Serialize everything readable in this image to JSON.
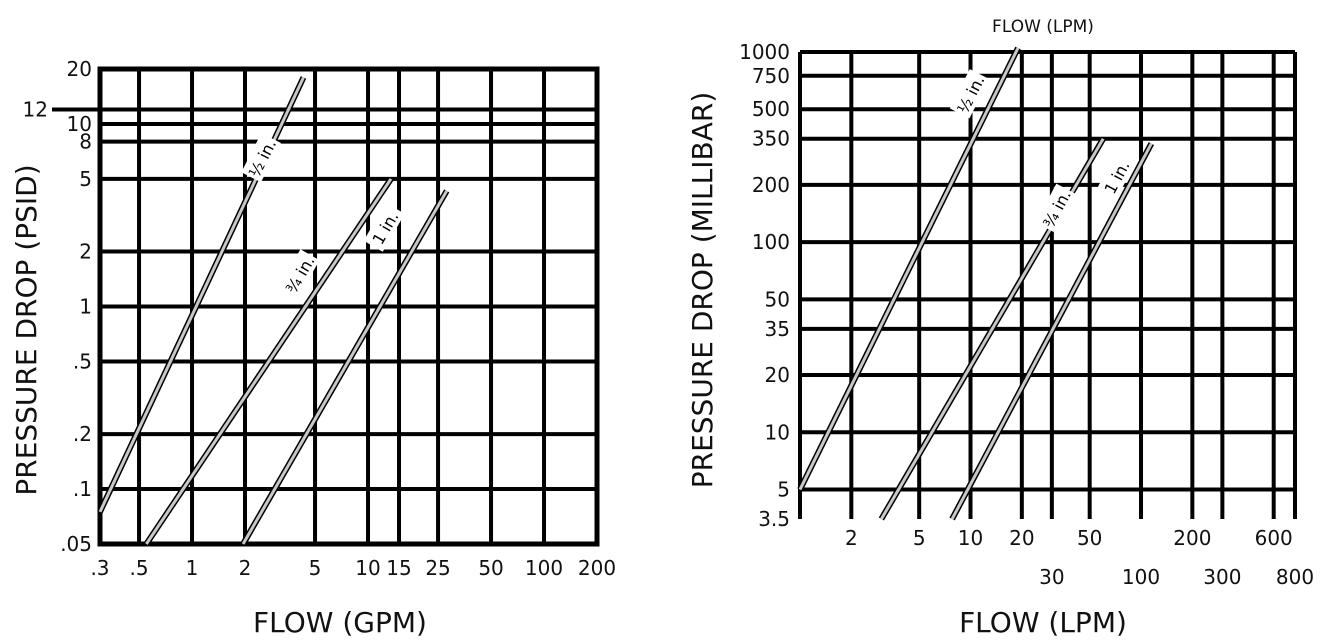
{
  "chart_data": [
    {
      "type": "line",
      "xlabel": "FLOW (GPM)",
      "ylabel": "PRESSURE DROP (PSID)",
      "x_scale": "log",
      "y_scale": "log",
      "xlim": [
        0.3,
        200
      ],
      "ylim": [
        0.05,
        20
      ],
      "x_ticks": [
        {
          "v": 0.3,
          "label": ".3"
        },
        {
          "v": 0.5,
          "label": ".5"
        },
        {
          "v": 1,
          "label": "1"
        },
        {
          "v": 2,
          "label": "2"
        },
        {
          "v": 5,
          "label": "5"
        },
        {
          "v": 10,
          "label": "10"
        },
        {
          "v": 15,
          "label": "15"
        },
        {
          "v": 25,
          "label": "25"
        },
        {
          "v": 50,
          "label": "50"
        },
        {
          "v": 100,
          "label": "100"
        },
        {
          "v": 200,
          "label": "200"
        }
      ],
      "y_ticks": [
        {
          "v": 0.05,
          "label": ".05"
        },
        {
          "v": 0.1,
          "label": ".1"
        },
        {
          "v": 0.2,
          "label": ".2"
        },
        {
          "v": 0.5,
          "label": ".5"
        },
        {
          "v": 1,
          "label": "1"
        },
        {
          "v": 2,
          "label": "2"
        },
        {
          "v": 5,
          "label": "5"
        },
        {
          "v": 8,
          "label": "8"
        },
        {
          "v": 10,
          "label": "10"
        },
        {
          "v": 20,
          "label": "20"
        }
      ],
      "extra_ticks": [
        {
          "v": 12,
          "label": "12"
        }
      ],
      "series": [
        {
          "name": "½ in.",
          "points": [
            [
              0.3,
              0.075
            ],
            [
              4.3,
              18
            ]
          ]
        },
        {
          "name": "¾ in.",
          "points": [
            [
              0.55,
              0.05
            ],
            [
              13.5,
              5
            ]
          ]
        },
        {
          "name": "1 in.",
          "points": [
            [
              1.95,
              0.05
            ],
            [
              28,
              4.3
            ]
          ]
        }
      ]
    },
    {
      "type": "line",
      "title": "FLOW (LPM)",
      "xlabel": "FLOW (LPM)",
      "ylabel": "PRESSURE DROP (MILLIBAR)",
      "x_scale": "log",
      "y_scale": "log",
      "xlim": [
        1,
        800
      ],
      "ylim": [
        3.5,
        1000
      ],
      "x_ticks_top_row": [
        {
          "v": 2,
          "label": "2"
        },
        {
          "v": 5,
          "label": "5"
        },
        {
          "v": 10,
          "label": "10"
        },
        {
          "v": 20,
          "label": "20"
        },
        {
          "v": 50,
          "label": "50"
        },
        {
          "v": 200,
          "label": "200"
        },
        {
          "v": 600,
          "label": "600"
        }
      ],
      "x_ticks_bottom_row": [
        {
          "v": 30,
          "label": "30"
        },
        {
          "v": 100,
          "label": "100"
        },
        {
          "v": 300,
          "label": "300"
        },
        {
          "v": 800,
          "label": "800"
        }
      ],
      "y_ticks": [
        {
          "v": 3.5,
          "label": "3.5"
        },
        {
          "v": 5,
          "label": "5"
        },
        {
          "v": 10,
          "label": "10"
        },
        {
          "v": 20,
          "label": "20"
        },
        {
          "v": 35,
          "label": "35"
        },
        {
          "v": 50,
          "label": "50"
        },
        {
          "v": 100,
          "label": "100"
        },
        {
          "v": 200,
          "label": "200"
        },
        {
          "v": 350,
          "label": "350"
        },
        {
          "v": 500,
          "label": "500"
        },
        {
          "v": 750,
          "label": "750"
        },
        {
          "v": 1000,
          "label": "1000"
        }
      ],
      "series": [
        {
          "name": "½ in.",
          "points": [
            [
              1,
              5
            ],
            [
              19,
              1050
            ]
          ]
        },
        {
          "name": "¾ in.",
          "points": [
            [
              3,
              3.5
            ],
            [
              60,
              350
            ]
          ]
        },
        {
          "name": "1 in.",
          "points": [
            [
              7.8,
              3.5
            ],
            [
              115,
              330
            ]
          ]
        }
      ]
    }
  ]
}
